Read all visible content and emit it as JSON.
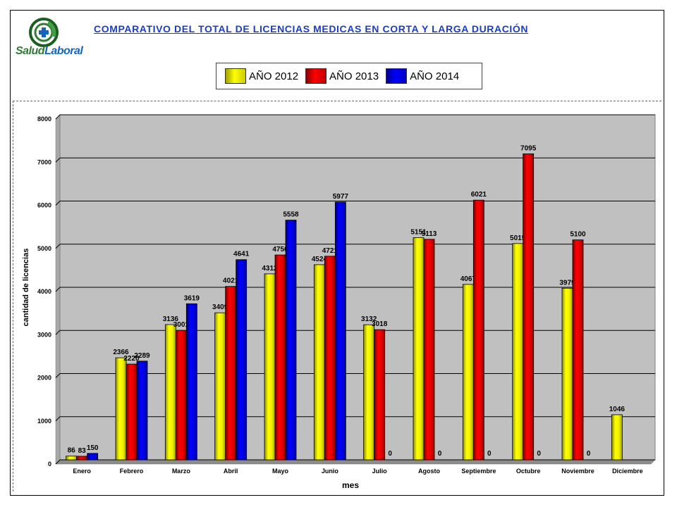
{
  "logo": {
    "text_a": "Salud",
    "text_b": "Laboral"
  },
  "title": "COMPARATIVO DEL TOTAL DE LICENCIAS MEDICAS EN CORTA Y LARGA DURACIÓN",
  "legend": [
    {
      "label": "AÑO 2012",
      "color": "#ffff00"
    },
    {
      "label": "AÑO 2013",
      "color": "#ff0000"
    },
    {
      "label": "AÑO 2014",
      "color": "#0000ff"
    }
  ],
  "chart_data": {
    "type": "bar",
    "categories": [
      "Enero",
      "Febrero",
      "Marzo",
      "Abril",
      "Mayo",
      "Junio",
      "Julio",
      "Agosto",
      "Septiembre",
      "Octubre",
      "Noviembre",
      "Diciembre"
    ],
    "series": [
      {
        "name": "AÑO 2012",
        "color": "#ffff00",
        "values": [
          86,
          2366,
          3136,
          3409,
          4312,
          4524,
          3132,
          5151,
          4067,
          5015,
          3979,
          1046
        ]
      },
      {
        "name": "AÑO 2013",
        "color": "#ff0000",
        "values": [
          83,
          2220,
          3001,
          4021,
          4750,
          4721,
          3018,
          5113,
          6021,
          7095,
          5100,
          null
        ]
      },
      {
        "name": "AÑO 2014",
        "color": "#0000ff",
        "values": [
          150,
          2289,
          3619,
          4641,
          5558,
          5977,
          0,
          0,
          0,
          0,
          0,
          null
        ]
      }
    ],
    "xlabel": "mes",
    "ylabel": "cantidad de licencias",
    "ylim": [
      0,
      8000
    ],
    "yticks": [
      0,
      1000,
      2000,
      3000,
      4000,
      5000,
      6000,
      7000,
      8000
    ],
    "grid": true,
    "plot_background": "#c0c0c0"
  }
}
